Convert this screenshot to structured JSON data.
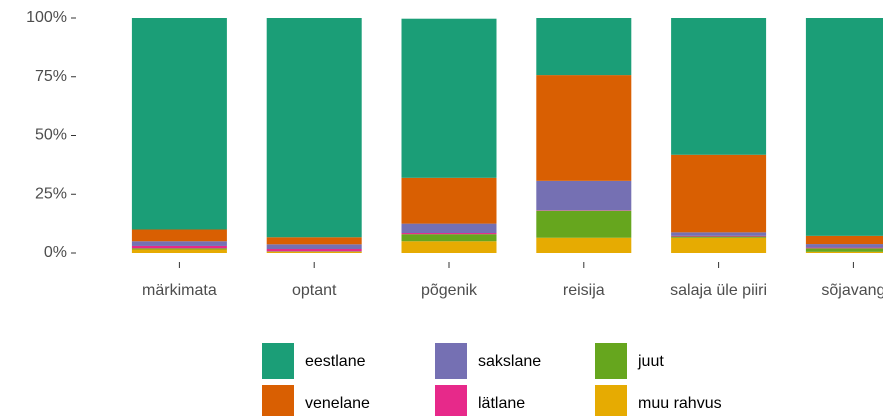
{
  "chart_data": {
    "type": "stacked_bar",
    "categories": [
      "märkimata",
      "optant",
      "põgenik",
      "reisija",
      "salaja üle piiri",
      "sõjavang"
    ],
    "series": [
      {
        "name": "eestlane",
        "color": "#1B9E77",
        "values": [
          90,
          93.3,
          67.7,
          24.3,
          58.2,
          92.7
        ]
      },
      {
        "name": "venelane",
        "color": "#D95F02",
        "values": [
          5,
          3,
          19.5,
          45,
          33,
          3.5
        ]
      },
      {
        "name": "sakslane",
        "color": "#7570B3",
        "values": [
          2,
          2,
          4,
          12.5,
          1.5,
          1.5
        ]
      },
      {
        "name": "lätlane",
        "color": "#E7298A",
        "values": [
          1,
          1,
          0.5,
          0.2,
          0.3,
          0.3
        ]
      },
      {
        "name": "juut",
        "color": "#66A61E",
        "values": [
          0.5,
          0.2,
          3,
          11.5,
          0.5,
          1.5
        ]
      },
      {
        "name": "muu rahvus",
        "color": "#E6AB02",
        "values": [
          1.5,
          0.5,
          5,
          6.5,
          6.5,
          0.5
        ]
      }
    ],
    "ylim": [
      -5,
      105
    ],
    "yticks": [
      {
        "value": 0,
        "label": "0%"
      },
      {
        "value": 25,
        "label": "25%"
      },
      {
        "value": 50,
        "label": "50%"
      },
      {
        "value": 75,
        "label": "75%"
      },
      {
        "value": 100,
        "label": "100%"
      }
    ]
  }
}
